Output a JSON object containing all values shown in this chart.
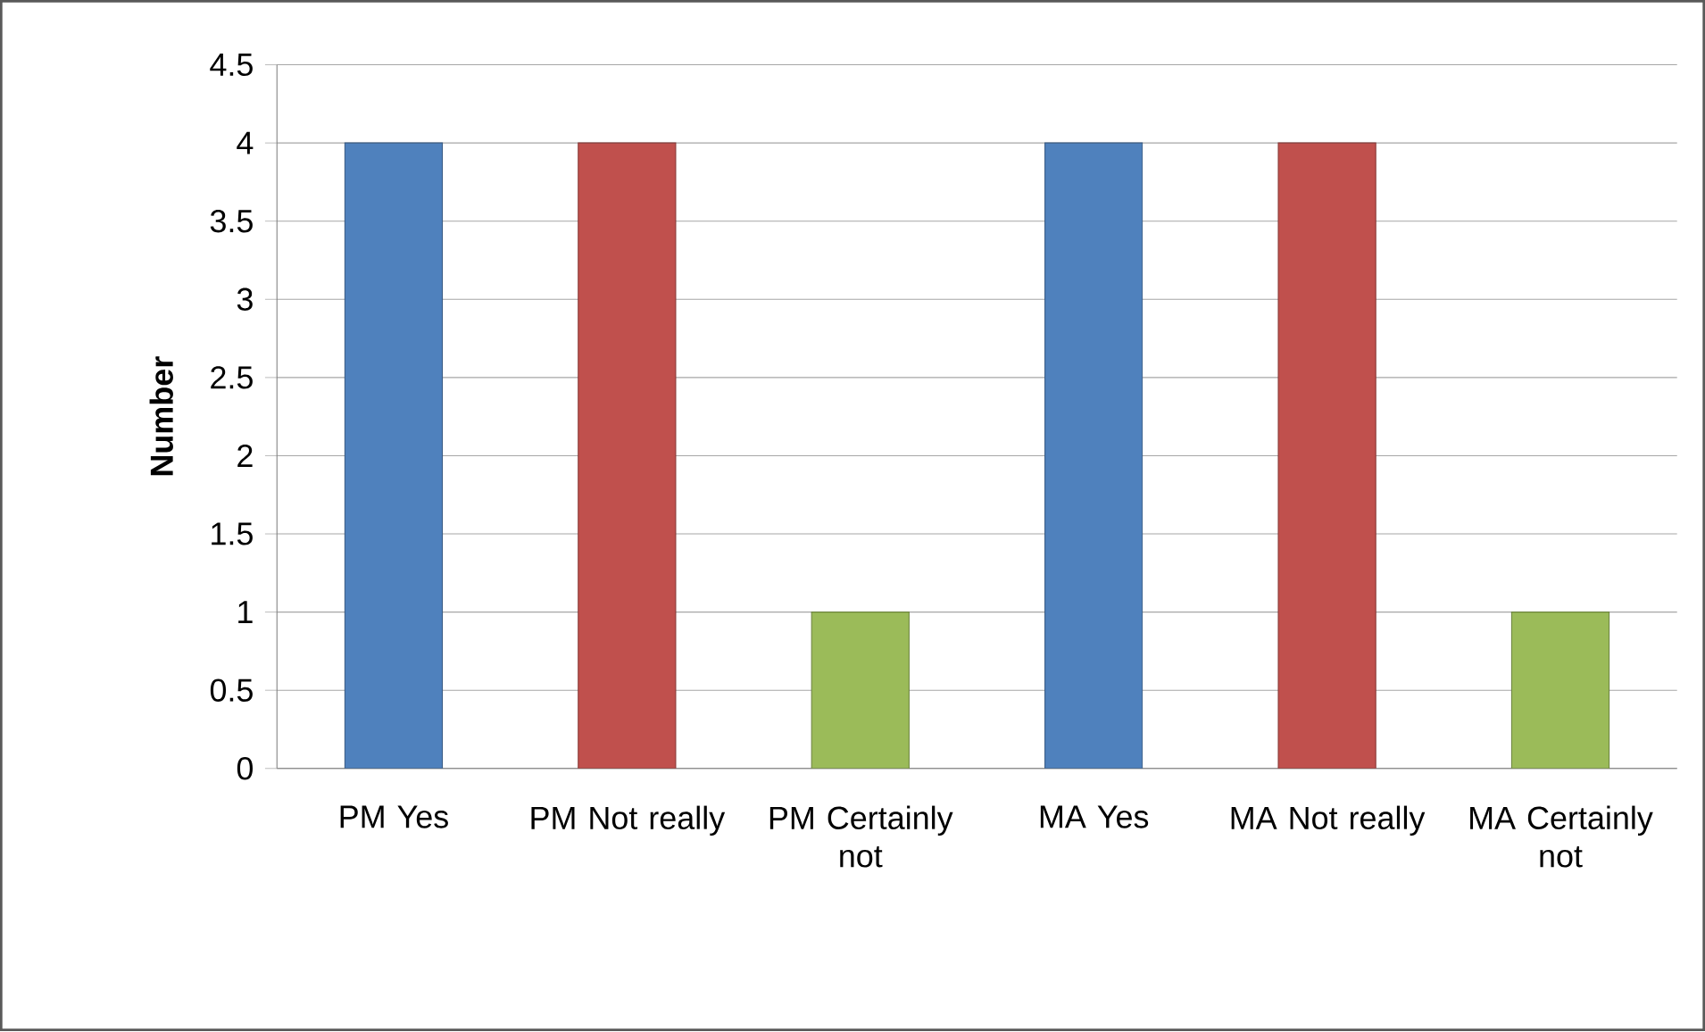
{
  "chart_data": {
    "type": "bar",
    "ylabel": "Number",
    "categories": [
      "PM Yes",
      "PM Not really",
      "PM Certainly not",
      "MA Yes",
      "MA Not really",
      "MA Certainly not"
    ],
    "values": [
      4,
      4,
      1,
      4,
      4,
      1
    ],
    "colors": [
      "#4f81bd",
      "#c0504d",
      "#9bbb59",
      "#4f81bd",
      "#c0504d",
      "#9bbb59"
    ],
    "ylim": [
      0,
      4.5
    ],
    "yticks": [
      0,
      0.5,
      1,
      1.5,
      2,
      2.5,
      3,
      3.5,
      4,
      4.5
    ],
    "grid": "y"
  }
}
